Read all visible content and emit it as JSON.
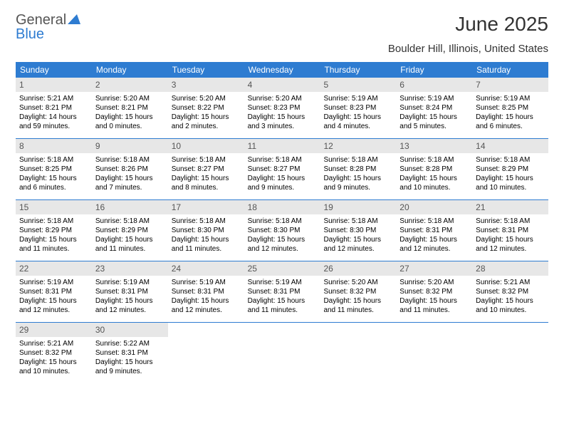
{
  "logo": {
    "text1": "General",
    "text2": "Blue",
    "tri_color": "#2e7cd1"
  },
  "title": "June 2025",
  "location": "Boulder Hill, Illinois, United States",
  "header_bg": "#2e7cd1",
  "header_fg": "#ffffff",
  "daynum_bg": "#e7e7e7",
  "border_color": "#2e7cd1",
  "weekdays": [
    "Sunday",
    "Monday",
    "Tuesday",
    "Wednesday",
    "Thursday",
    "Friday",
    "Saturday"
  ],
  "weeks": [
    [
      {
        "n": "1",
        "sr": "Sunrise: 5:21 AM",
        "ss": "Sunset: 8:21 PM",
        "dl": "Daylight: 14 hours and 59 minutes."
      },
      {
        "n": "2",
        "sr": "Sunrise: 5:20 AM",
        "ss": "Sunset: 8:21 PM",
        "dl": "Daylight: 15 hours and 0 minutes."
      },
      {
        "n": "3",
        "sr": "Sunrise: 5:20 AM",
        "ss": "Sunset: 8:22 PM",
        "dl": "Daylight: 15 hours and 2 minutes."
      },
      {
        "n": "4",
        "sr": "Sunrise: 5:20 AM",
        "ss": "Sunset: 8:23 PM",
        "dl": "Daylight: 15 hours and 3 minutes."
      },
      {
        "n": "5",
        "sr": "Sunrise: 5:19 AM",
        "ss": "Sunset: 8:23 PM",
        "dl": "Daylight: 15 hours and 4 minutes."
      },
      {
        "n": "6",
        "sr": "Sunrise: 5:19 AM",
        "ss": "Sunset: 8:24 PM",
        "dl": "Daylight: 15 hours and 5 minutes."
      },
      {
        "n": "7",
        "sr": "Sunrise: 5:19 AM",
        "ss": "Sunset: 8:25 PM",
        "dl": "Daylight: 15 hours and 6 minutes."
      }
    ],
    [
      {
        "n": "8",
        "sr": "Sunrise: 5:18 AM",
        "ss": "Sunset: 8:25 PM",
        "dl": "Daylight: 15 hours and 6 minutes."
      },
      {
        "n": "9",
        "sr": "Sunrise: 5:18 AM",
        "ss": "Sunset: 8:26 PM",
        "dl": "Daylight: 15 hours and 7 minutes."
      },
      {
        "n": "10",
        "sr": "Sunrise: 5:18 AM",
        "ss": "Sunset: 8:27 PM",
        "dl": "Daylight: 15 hours and 8 minutes."
      },
      {
        "n": "11",
        "sr": "Sunrise: 5:18 AM",
        "ss": "Sunset: 8:27 PM",
        "dl": "Daylight: 15 hours and 9 minutes."
      },
      {
        "n": "12",
        "sr": "Sunrise: 5:18 AM",
        "ss": "Sunset: 8:28 PM",
        "dl": "Daylight: 15 hours and 9 minutes."
      },
      {
        "n": "13",
        "sr": "Sunrise: 5:18 AM",
        "ss": "Sunset: 8:28 PM",
        "dl": "Daylight: 15 hours and 10 minutes."
      },
      {
        "n": "14",
        "sr": "Sunrise: 5:18 AM",
        "ss": "Sunset: 8:29 PM",
        "dl": "Daylight: 15 hours and 10 minutes."
      }
    ],
    [
      {
        "n": "15",
        "sr": "Sunrise: 5:18 AM",
        "ss": "Sunset: 8:29 PM",
        "dl": "Daylight: 15 hours and 11 minutes."
      },
      {
        "n": "16",
        "sr": "Sunrise: 5:18 AM",
        "ss": "Sunset: 8:29 PM",
        "dl": "Daylight: 15 hours and 11 minutes."
      },
      {
        "n": "17",
        "sr": "Sunrise: 5:18 AM",
        "ss": "Sunset: 8:30 PM",
        "dl": "Daylight: 15 hours and 11 minutes."
      },
      {
        "n": "18",
        "sr": "Sunrise: 5:18 AM",
        "ss": "Sunset: 8:30 PM",
        "dl": "Daylight: 15 hours and 12 minutes."
      },
      {
        "n": "19",
        "sr": "Sunrise: 5:18 AM",
        "ss": "Sunset: 8:30 PM",
        "dl": "Daylight: 15 hours and 12 minutes."
      },
      {
        "n": "20",
        "sr": "Sunrise: 5:18 AM",
        "ss": "Sunset: 8:31 PM",
        "dl": "Daylight: 15 hours and 12 minutes."
      },
      {
        "n": "21",
        "sr": "Sunrise: 5:18 AM",
        "ss": "Sunset: 8:31 PM",
        "dl": "Daylight: 15 hours and 12 minutes."
      }
    ],
    [
      {
        "n": "22",
        "sr": "Sunrise: 5:19 AM",
        "ss": "Sunset: 8:31 PM",
        "dl": "Daylight: 15 hours and 12 minutes."
      },
      {
        "n": "23",
        "sr": "Sunrise: 5:19 AM",
        "ss": "Sunset: 8:31 PM",
        "dl": "Daylight: 15 hours and 12 minutes."
      },
      {
        "n": "24",
        "sr": "Sunrise: 5:19 AM",
        "ss": "Sunset: 8:31 PM",
        "dl": "Daylight: 15 hours and 12 minutes."
      },
      {
        "n": "25",
        "sr": "Sunrise: 5:19 AM",
        "ss": "Sunset: 8:31 PM",
        "dl": "Daylight: 15 hours and 11 minutes."
      },
      {
        "n": "26",
        "sr": "Sunrise: 5:20 AM",
        "ss": "Sunset: 8:32 PM",
        "dl": "Daylight: 15 hours and 11 minutes."
      },
      {
        "n": "27",
        "sr": "Sunrise: 5:20 AM",
        "ss": "Sunset: 8:32 PM",
        "dl": "Daylight: 15 hours and 11 minutes."
      },
      {
        "n": "28",
        "sr": "Sunrise: 5:21 AM",
        "ss": "Sunset: 8:32 PM",
        "dl": "Daylight: 15 hours and 10 minutes."
      }
    ],
    [
      {
        "n": "29",
        "sr": "Sunrise: 5:21 AM",
        "ss": "Sunset: 8:32 PM",
        "dl": "Daylight: 15 hours and 10 minutes."
      },
      {
        "n": "30",
        "sr": "Sunrise: 5:22 AM",
        "ss": "Sunset: 8:31 PM",
        "dl": "Daylight: 15 hours and 9 minutes."
      },
      null,
      null,
      null,
      null,
      null
    ]
  ]
}
